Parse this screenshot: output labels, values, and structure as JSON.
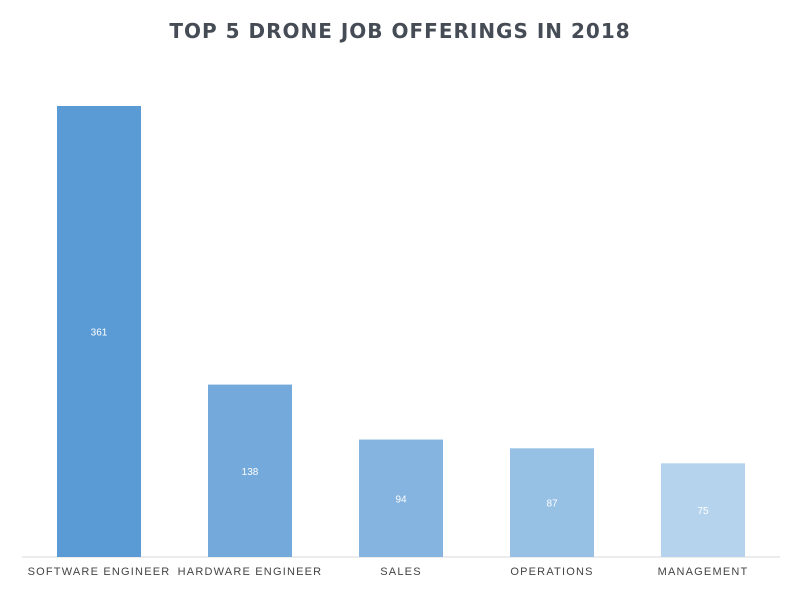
{
  "chart_data": {
    "type": "bar",
    "title": "TOP 5 DRONE JOB OFFERINGS IN 2018",
    "categories": [
      "SOFTWARE ENGINEER",
      "HARDWARE ENGINEER",
      "SALES",
      "OPERATIONS",
      "MANAGEMENT"
    ],
    "values": [
      361,
      138,
      94,
      87,
      75
    ],
    "value_labels": [
      "361",
      "138",
      "94",
      "87",
      "75"
    ],
    "colors": [
      "#5b9bd5",
      "#73a9db",
      "#85b4e0",
      "#97c0e5",
      "#b5d3ec"
    ],
    "xlabel": "",
    "ylabel": "",
    "ylim": [
      0,
      361
    ],
    "grid": false,
    "legend": "none"
  }
}
